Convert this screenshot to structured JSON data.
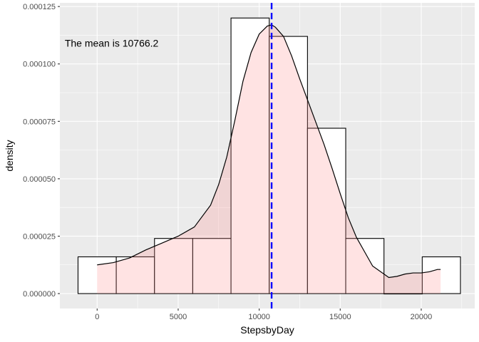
{
  "chart_data": {
    "type": "histogram",
    "title": "",
    "xlabel": "StepsbyDay",
    "ylabel": "density",
    "xlim": [
      -2300,
      23300
    ],
    "ylim": [
      -6.5e-06,
      0.0001266
    ],
    "x_ticks": [
      0,
      5000,
      10000,
      15000,
      20000
    ],
    "x_tick_labels": [
      "0",
      "5000",
      "10000",
      "15000",
      "20000"
    ],
    "y_ticks": [
      0,
      2.5e-05,
      5e-05,
      7.5e-05,
      0.0001,
      0.000125
    ],
    "y_tick_labels": [
      "0.000000",
      "0.000025",
      "0.000050",
      "0.000075",
      "0.000100",
      "0.000125"
    ],
    "grid": true,
    "histogram_bins": [
      {
        "x0": -1180,
        "x1": 1180,
        "density": 1.6e-05
      },
      {
        "x0": 1180,
        "x1": 3540,
        "density": 1.6e-05
      },
      {
        "x0": 3540,
        "x1": 5900,
        "density": 2.4e-05
      },
      {
        "x0": 5900,
        "x1": 8260,
        "density": 2.4e-05
      },
      {
        "x0": 8260,
        "x1": 10620,
        "density": 0.00012
      },
      {
        "x0": 10620,
        "x1": 12980,
        "density": 0.000112
      },
      {
        "x0": 12980,
        "x1": 15340,
        "density": 7.2e-05
      },
      {
        "x0": 15340,
        "x1": 17700,
        "density": 2.4e-05
      },
      {
        "x0": 17700,
        "x1": 20060,
        "density": 0
      },
      {
        "x0": 20060,
        "x1": 22420,
        "density": 1.6e-05
      }
    ],
    "density_curve": {
      "x": [
        0,
        1000,
        2000,
        3000,
        4000,
        5000,
        6000,
        7000,
        7500,
        8000,
        8500,
        9000,
        9500,
        10000,
        10500,
        10766,
        11000,
        11500,
        12000,
        12500,
        13000,
        13500,
        14000,
        14500,
        15000,
        15500,
        16000,
        17000,
        18000,
        18500,
        19000,
        19500,
        20000,
        20500,
        21000,
        21194
      ],
      "y": [
        1.25e-05,
        1.35e-05,
        1.55e-05,
        1.9e-05,
        2.2e-05,
        2.5e-05,
        2.9e-05,
        3.85e-05,
        4.75e-05,
        5.95e-05,
        7.55e-05,
        9.25e-05,
        0.000105,
        0.000113,
        0.0001165,
        0.000117,
        0.000116,
        0.000112,
        0.0001035,
        9.35e-05,
        8.4e-05,
        7.45e-05,
        6.5e-05,
        5.45e-05,
        4.35e-05,
        3.3e-05,
        2.45e-05,
        1.2e-05,
        7e-06,
        7.5e-06,
        8.5e-06,
        9e-06,
        9e-06,
        9.5e-06,
        1.05e-05,
        1.05e-05
      ]
    },
    "mean_line": {
      "x": 10766.2,
      "color": "#0000ff",
      "style": "dashed"
    },
    "colors": {
      "panel_background": "#ebebeb",
      "grid_major": "#ffffff",
      "density_fill": "#ff8f8f",
      "density_fill_opacity": 0.25,
      "bar_outline": "#000000",
      "bar_fill": "#ffffff"
    },
    "annotation": {
      "text": "The mean is 10766.2",
      "x": -2000,
      "y": 0.000109
    }
  }
}
